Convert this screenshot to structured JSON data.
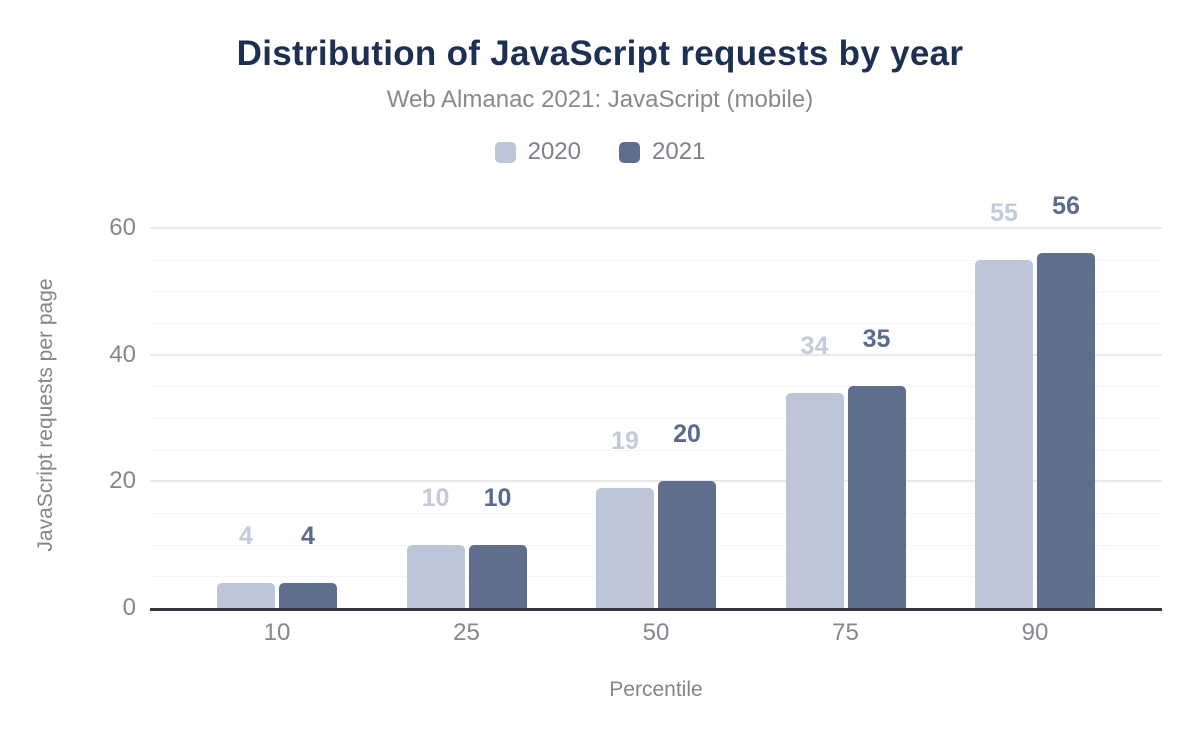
{
  "chart_data": {
    "type": "bar",
    "title": "Distribution of JavaScript requests by year",
    "subtitle": "Web Almanac 2021: JavaScript (mobile)",
    "xlabel": "Percentile",
    "ylabel": "JavaScript requests per page",
    "categories": [
      "10",
      "25",
      "50",
      "75",
      "90"
    ],
    "series": [
      {
        "name": "2020",
        "values": [
          4,
          10,
          19,
          34,
          55
        ],
        "color": "#bdc6d6",
        "label_color": "#c1cbdb"
      },
      {
        "name": "2021",
        "values": [
          4,
          10,
          20,
          35,
          56
        ],
        "color": "#5f6e8c",
        "label_color": "#5a6b8c"
      }
    ],
    "ylim": [
      0,
      60
    ],
    "yticks": [
      0,
      20,
      40,
      60
    ],
    "grid": {
      "minor_step": 5,
      "major_step": 20,
      "visible": true
    },
    "legend_position": "top",
    "colors": {
      "title": "#1d2f52",
      "subtitle": "#868a90",
      "axis_text": "#84878d",
      "axis_line": "#34363c",
      "grid_major": "#e9e9e9",
      "grid_minor": "#f5f5f5",
      "background": "#ffffff"
    }
  }
}
